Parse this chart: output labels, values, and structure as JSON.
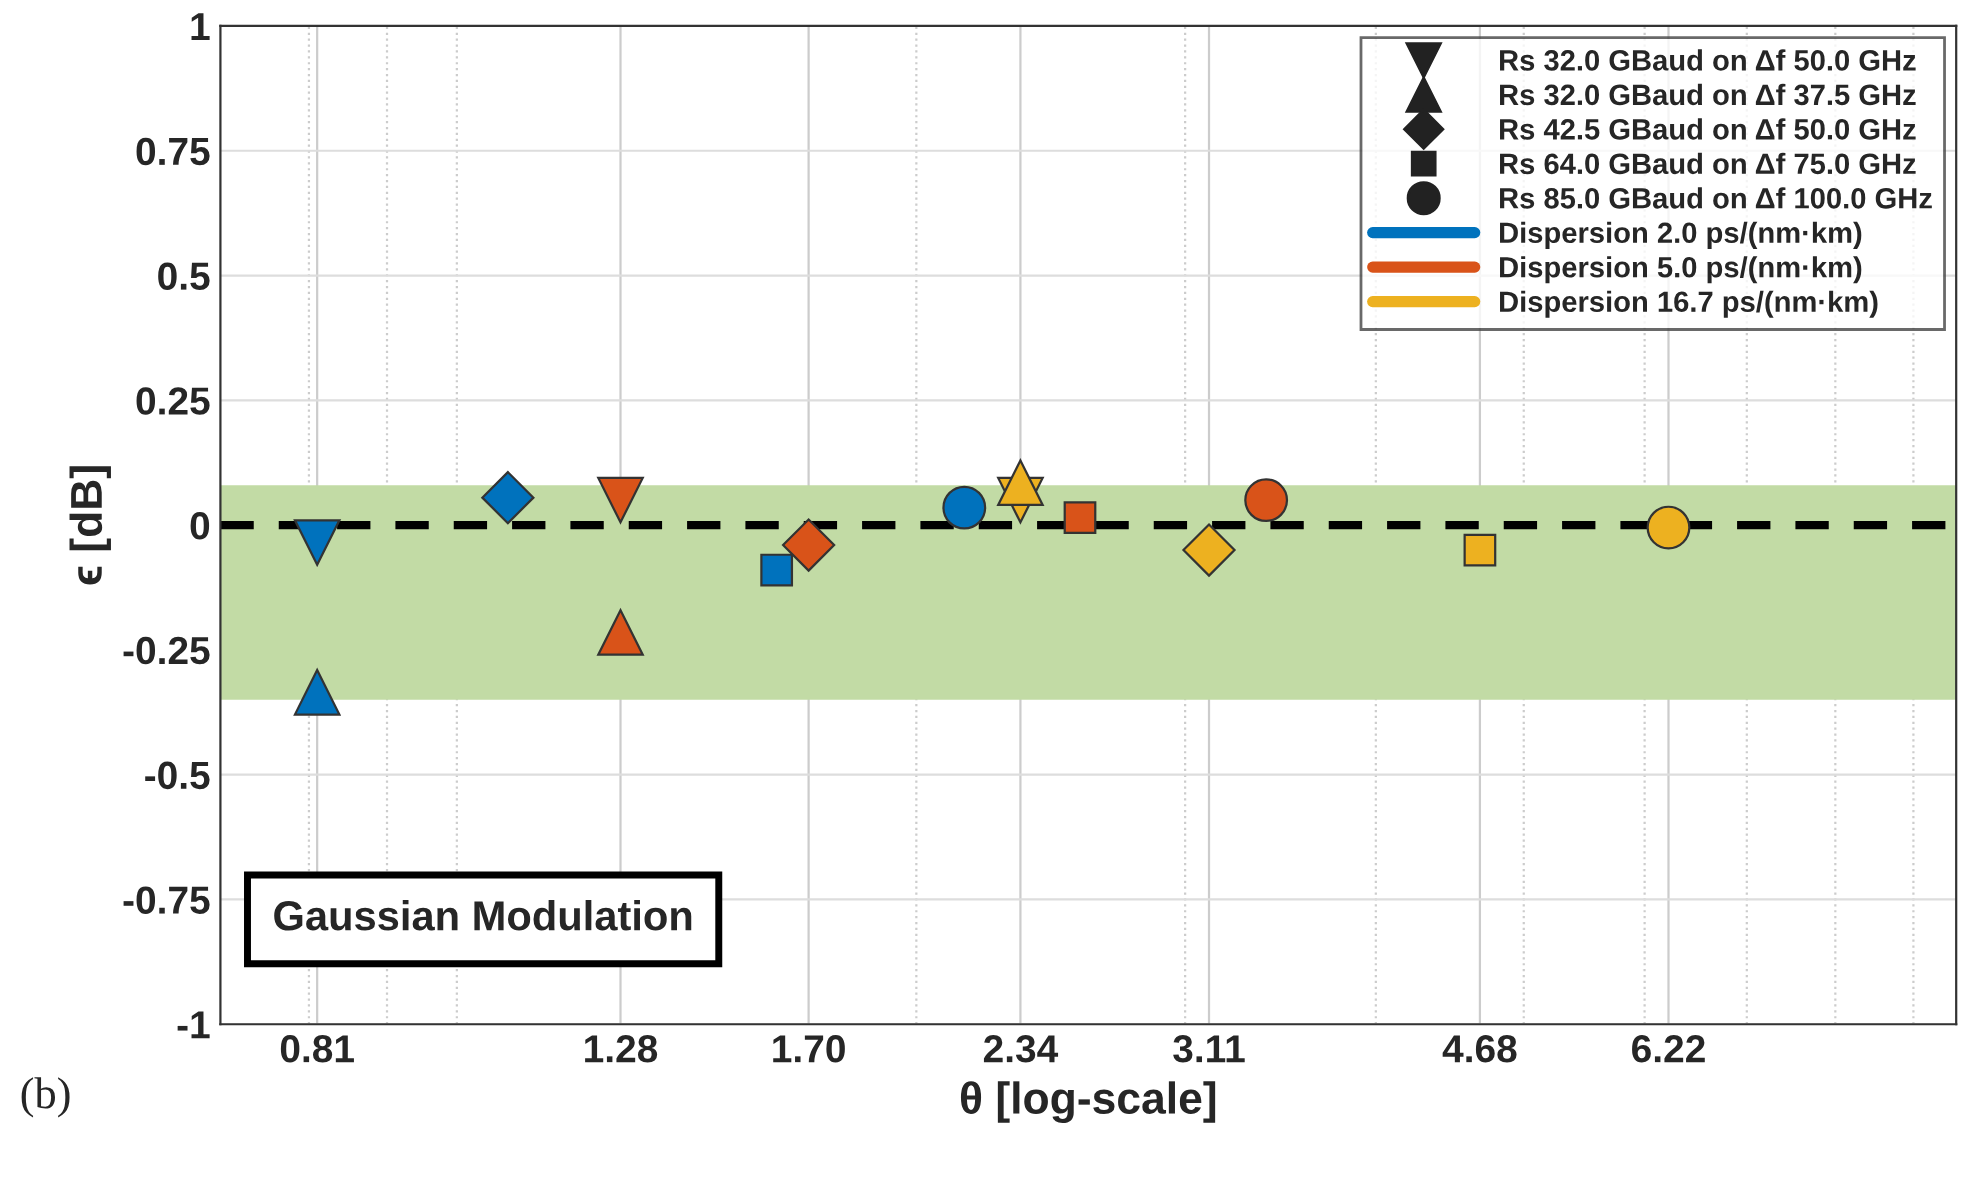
{
  "chart_data": {
    "type": "scatter",
    "xlabel": "θ [log-scale]",
    "ylabel": "ϵ [dB]",
    "log": "x",
    "xlim": [
      0.7,
      9.6
    ],
    "xticks": [
      {
        "value": 0.8,
        "label": null
      },
      {
        "value": 0.81,
        "label": "0.81"
      },
      {
        "value": 0.9,
        "label": null
      },
      {
        "value": 1,
        "label": null
      },
      {
        "value": 1.28,
        "label": "1.28"
      },
      {
        "value": 1.7,
        "label": "1.70"
      },
      {
        "value": 2,
        "label": null
      },
      {
        "value": 2.34,
        "label": "2.34"
      },
      {
        "value": 3,
        "label": null
      },
      {
        "value": 3.11,
        "label": "3.11"
      },
      {
        "value": 4,
        "label": null
      },
      {
        "value": 4.68,
        "label": "4.68"
      },
      {
        "value": 5,
        "label": null
      },
      {
        "value": 6,
        "label": null
      },
      {
        "value": 6.22,
        "label": "6.22"
      },
      {
        "value": 7,
        "label": null
      },
      {
        "value": 8,
        "label": null
      },
      {
        "value": 9,
        "label": null
      }
    ],
    "ylim": [
      -1,
      1
    ],
    "yticks": [
      -1,
      -0.75,
      -0.5,
      -0.25,
      0,
      0.25,
      0.5,
      0.75,
      1
    ],
    "grid": true,
    "legend": "top right",
    "series": [
      {
        "name": "Dispersion 2.0 ps/(nm·km)",
        "color": "#0072bd",
        "x": [
          0.81,
          0.81,
          1.08,
          1.62,
          2.15
        ],
        "values": [
          -0.035,
          -0.335,
          0.055,
          -0.09,
          0.035
        ],
        "marker": [
          "triangle_down",
          "triangle",
          "diamond",
          "square",
          "circle"
        ]
      },
      {
        "name": "Dispersion 5.0 ps/(nm·km)",
        "color": "#d95319",
        "x": [
          1.28,
          1.28,
          1.7,
          2.56,
          3.39
        ],
        "values": [
          0.05,
          -0.215,
          -0.04,
          0.015,
          0.05
        ],
        "marker": [
          "triangle_down",
          "triangle",
          "diamond",
          "square",
          "circle"
        ]
      },
      {
        "name": "Dispersion 16.7 ps/(nm·km)",
        "color": "#edb120",
        "x": [
          2.34,
          2.34,
          3.11,
          4.68,
          6.22
        ],
        "values": [
          0.05,
          0.085,
          -0.05,
          -0.05,
          -0.005
        ],
        "marker": [
          "triangle_down",
          "triangle",
          "diamond",
          "square",
          "circle"
        ]
      }
    ],
    "ref_lines": [
      {
        "axis": "y",
        "value": 0,
        "color": "#000000",
        "line_style": "dashed"
      }
    ],
    "bands": [
      {
        "axis": "y",
        "from": -0.35,
        "to": 0.08,
        "color": "#c2dba5"
      }
    ],
    "annotations": [
      "Gaussian Modulation",
      "(b)",
      "Rs 32.0 GBaud on Δf 50.0 GHz",
      "Rs 32.0 GBaud on Δf 37.5 GHz",
      "Rs 42.5 GBaud on Δf 50.0 GHz",
      "Rs 64.0 GBaud on Δf 75.0 GHz",
      "Rs 85.0 GBaud on Δf 100.0 GHz"
    ]
  }
}
